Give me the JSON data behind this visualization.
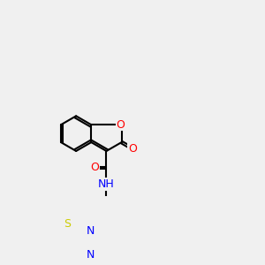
{
  "background_color": "#f0f0f0",
  "bond_color": "#000000",
  "atom_colors": {
    "N": "#0000ff",
    "O": "#ff0000",
    "S": "#cccc00",
    "H": "#808080",
    "C": "#000000"
  },
  "figsize": [
    3.0,
    3.0
  ],
  "dpi": 100
}
